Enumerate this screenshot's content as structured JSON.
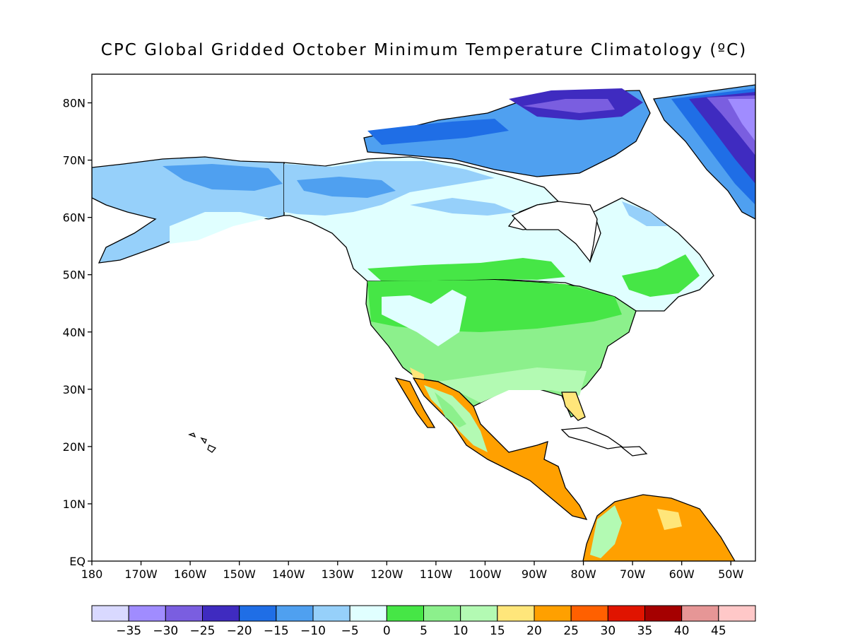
{
  "map": {
    "title": "CPC Global Gridded October Minimum Temperature Climatology (ºC)",
    "lat_ticks": [
      "EQ",
      "10N",
      "20N",
      "30N",
      "40N",
      "50N",
      "60N",
      "70N",
      "80N"
    ],
    "lon_ticks": [
      "180",
      "170W",
      "160W",
      "150W",
      "140W",
      "130W",
      "120W",
      "110W",
      "100W",
      "90W",
      "80W",
      "70W",
      "60W",
      "50W"
    ],
    "lat_range": [
      0,
      85
    ],
    "lon_range": [
      -180,
      -45
    ]
  },
  "colorbar": {
    "labels": [
      "-35",
      "-30",
      "-25",
      "-20",
      "-15",
      "-10",
      "-5",
      "0",
      "5",
      "10",
      "15",
      "20",
      "25",
      "30",
      "35",
      "40",
      "45"
    ],
    "colors": [
      "#d9d9ff",
      "#a08cff",
      "#7a5ee0",
      "#3f2bc0",
      "#1f6ee6",
      "#4fa0f0",
      "#96d0fa",
      "#e0ffff",
      "#46e646",
      "#8cf08c",
      "#b3fab3",
      "#ffe67a",
      "#ffa000",
      "#ff6000",
      "#e01400",
      "#a50000",
      "#e69696",
      "#ffc8c8"
    ]
  }
}
